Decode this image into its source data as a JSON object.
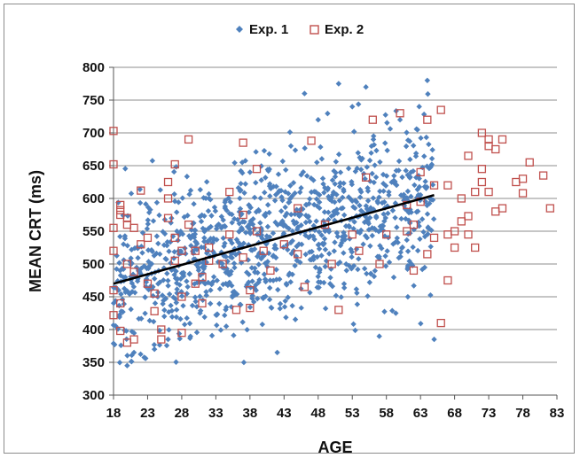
{
  "chart_data": {
    "type": "scatter",
    "title": "",
    "xlabel": "AGE",
    "ylabel": "MEAN CRT (ms)",
    "xlim": [
      18,
      83
    ],
    "ylim": [
      300,
      800
    ],
    "x_ticks": [
      18,
      23,
      28,
      33,
      38,
      43,
      48,
      53,
      58,
      63,
      68,
      73,
      78,
      83
    ],
    "y_ticks": [
      300,
      350,
      400,
      450,
      500,
      550,
      600,
      650,
      700,
      750,
      800
    ],
    "grid": "horizontal",
    "legend_position": "top",
    "series": [
      {
        "name": "Exp. 1",
        "marker": "diamond",
        "color": "#4f81bd",
        "x_range": [
          18,
          65
        ],
        "approx_points": 1100,
        "trend": {
          "x": [
            18,
            65
          ],
          "y": [
            470,
            605
          ]
        },
        "points_sample": [
          [
            20,
            345
          ],
          [
            21,
            365
          ],
          [
            24,
            370
          ],
          [
            26,
            385
          ],
          [
            42,
            365
          ],
          [
            46,
            760
          ],
          [
            51,
            775
          ],
          [
            55,
            770
          ],
          [
            64,
            780
          ],
          [
            65,
            385
          ],
          [
            48,
            720
          ],
          [
            53,
            740
          ],
          [
            60,
            720
          ],
          [
            32,
            600
          ],
          [
            38,
            640
          ],
          [
            44,
            680
          ]
        ]
      },
      {
        "name": "Exp. 2",
        "marker": "square-open",
        "color": "#c0504d",
        "points": [
          [
            18,
            703
          ],
          [
            18,
            652
          ],
          [
            19,
            590
          ],
          [
            19,
            582
          ],
          [
            19,
            575
          ],
          [
            20,
            570
          ],
          [
            20,
            560
          ],
          [
            21,
            555
          ],
          [
            18,
            555
          ],
          [
            18,
            520
          ],
          [
            18,
            460
          ],
          [
            18,
            422
          ],
          [
            19,
            440
          ],
          [
            19,
            398
          ],
          [
            20,
            380
          ],
          [
            21,
            385
          ],
          [
            20,
            500
          ],
          [
            21,
            488
          ],
          [
            22,
            530
          ],
          [
            22,
            612
          ],
          [
            23,
            540
          ],
          [
            23,
            470
          ],
          [
            24,
            455
          ],
          [
            24,
            428
          ],
          [
            25,
            400
          ],
          [
            25,
            385
          ],
          [
            26,
            625
          ],
          [
            26,
            600
          ],
          [
            26,
            570
          ],
          [
            27,
            652
          ],
          [
            27,
            540
          ],
          [
            27,
            505
          ],
          [
            28,
            520
          ],
          [
            28,
            450
          ],
          [
            28,
            395
          ],
          [
            29,
            690
          ],
          [
            29,
            560
          ],
          [
            30,
            520
          ],
          [
            30,
            470
          ],
          [
            31,
            480
          ],
          [
            31,
            440
          ],
          [
            32,
            525
          ],
          [
            32,
            505
          ],
          [
            34,
            500
          ],
          [
            35,
            610
          ],
          [
            35,
            545
          ],
          [
            36,
            430
          ],
          [
            37,
            685
          ],
          [
            37,
            575
          ],
          [
            37,
            510
          ],
          [
            38,
            460
          ],
          [
            38,
            433
          ],
          [
            39,
            645
          ],
          [
            39,
            550
          ],
          [
            40,
            520
          ],
          [
            41,
            490
          ],
          [
            43,
            530
          ],
          [
            45,
            585
          ],
          [
            45,
            515
          ],
          [
            46,
            465
          ],
          [
            47,
            688
          ],
          [
            49,
            560
          ],
          [
            50,
            500
          ],
          [
            51,
            430
          ],
          [
            53,
            545
          ],
          [
            54,
            520
          ],
          [
            55,
            632
          ],
          [
            56,
            720
          ],
          [
            57,
            500
          ],
          [
            58,
            545
          ],
          [
            60,
            730
          ],
          [
            61,
            550
          ],
          [
            61,
            590
          ],
          [
            62,
            560
          ],
          [
            62,
            490
          ],
          [
            63,
            640
          ],
          [
            63,
            595
          ],
          [
            64,
            515
          ],
          [
            64,
            720
          ],
          [
            65,
            620
          ],
          [
            65,
            540
          ],
          [
            66,
            735
          ],
          [
            66,
            410
          ],
          [
            67,
            620
          ],
          [
            67,
            475
          ],
          [
            67,
            545
          ],
          [
            68,
            525
          ],
          [
            68,
            550
          ],
          [
            69,
            600
          ],
          [
            69,
            565
          ],
          [
            70,
            545
          ],
          [
            70,
            573
          ],
          [
            70,
            665
          ],
          [
            71,
            610
          ],
          [
            71,
            525
          ],
          [
            72,
            700
          ],
          [
            72,
            645
          ],
          [
            72,
            625
          ],
          [
            73,
            690
          ],
          [
            73,
            680
          ],
          [
            73,
            610
          ],
          [
            74,
            675
          ],
          [
            74,
            580
          ],
          [
            75,
            690
          ],
          [
            75,
            585
          ],
          [
            77,
            625
          ],
          [
            78,
            630
          ],
          [
            78,
            608
          ],
          [
            79,
            655
          ],
          [
            81,
            635
          ],
          [
            82,
            585
          ]
        ]
      }
    ]
  }
}
